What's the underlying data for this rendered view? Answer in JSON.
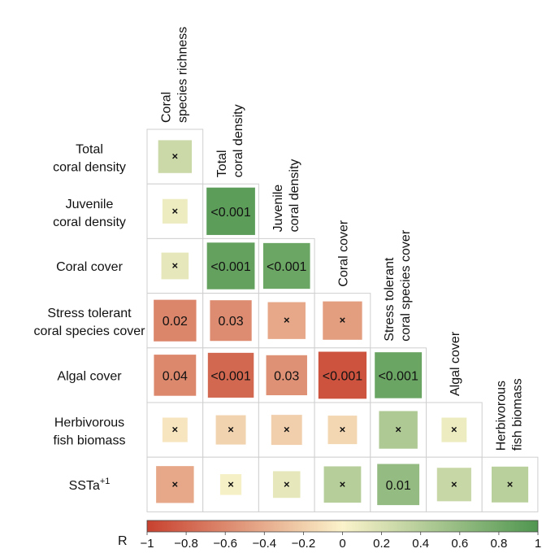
{
  "chart_data": {
    "type": "heatmap",
    "variables": [
      "Coral species richness",
      "Total coral density",
      "Juvenile coral density",
      "Coral cover",
      "Stress tolerant coral species cover",
      "Algal cover",
      "Herbivorous fish biomass",
      "SSTa+1"
    ],
    "row_labels": [
      [
        "Total",
        "coral density"
      ],
      [
        "Juvenile",
        "coral density"
      ],
      [
        "Coral cover"
      ],
      [
        "Stress tolerant",
        "coral species cover"
      ],
      [
        "Algal cover"
      ],
      [
        "Herbivorous",
        "fish biomass"
      ],
      [
        "SSTa",
        "+1"
      ]
    ],
    "column_labels": [
      [
        "Coral",
        "species richness"
      ],
      [
        "Total",
        "coral density"
      ],
      [
        "Juvenile",
        "coral density"
      ],
      [
        "Coral cover"
      ],
      [
        "Stress tolerant",
        "coral species cover"
      ],
      [
        "Algal cover"
      ],
      [
        "Herbivorous",
        "fish biomass"
      ]
    ],
    "matrix": [
      [
        {
          "r": 0.28,
          "p": "×"
        }
      ],
      [
        {
          "r": 0.08,
          "p": "×"
        },
        {
          "r": 0.92,
          "p": "<0.001"
        }
      ],
      [
        {
          "r": 0.12,
          "p": "×"
        },
        {
          "r": 0.88,
          "p": "<0.001"
        },
        {
          "r": 0.83,
          "p": "<0.001"
        }
      ],
      [
        {
          "r": -0.62,
          "p": "0.02"
        },
        {
          "r": -0.58,
          "p": "0.03"
        },
        {
          "r": -0.42,
          "p": "×"
        },
        {
          "r": -0.48,
          "p": "×"
        }
      ],
      [
        {
          "r": -0.6,
          "p": "0.04"
        },
        {
          "r": -0.78,
          "p": "<0.001"
        },
        {
          "r": -0.55,
          "p": "0.03"
        },
        {
          "r": -0.9,
          "p": "<0.001"
        },
        {
          "r": 0.84,
          "p": "<0.001"
        }
      ],
      [
        {
          "r": -0.08,
          "p": "×"
        },
        {
          "r": -0.18,
          "p": "×"
        },
        {
          "r": -0.2,
          "p": "×"
        },
        {
          "r": -0.16,
          "p": "×"
        },
        {
          "r": 0.45,
          "p": "×"
        },
        {
          "r": 0.08,
          "p": "×"
        }
      ],
      [
        {
          "r": -0.42,
          "p": "×"
        },
        {
          "r": 0.03,
          "p": "×"
        },
        {
          "r": 0.12,
          "p": "×"
        },
        {
          "r": 0.4,
          "p": "×"
        },
        {
          "r": 0.6,
          "p": "0.01"
        },
        {
          "r": 0.3,
          "p": "×"
        },
        {
          "r": 0.38,
          "p": "×"
        }
      ]
    ],
    "colorbar": {
      "label": "R",
      "ticks": [
        "−1",
        "−0.8",
        "−0.6",
        "−0.4",
        "−0.2",
        "0",
        "0.2",
        "0.4",
        "0.6",
        "0.8",
        "1"
      ],
      "range": [
        -1,
        1
      ],
      "colors": {
        "neg": "#c8412f",
        "mid": "#fbf3cb",
        "pos": "#4f9650"
      }
    }
  }
}
